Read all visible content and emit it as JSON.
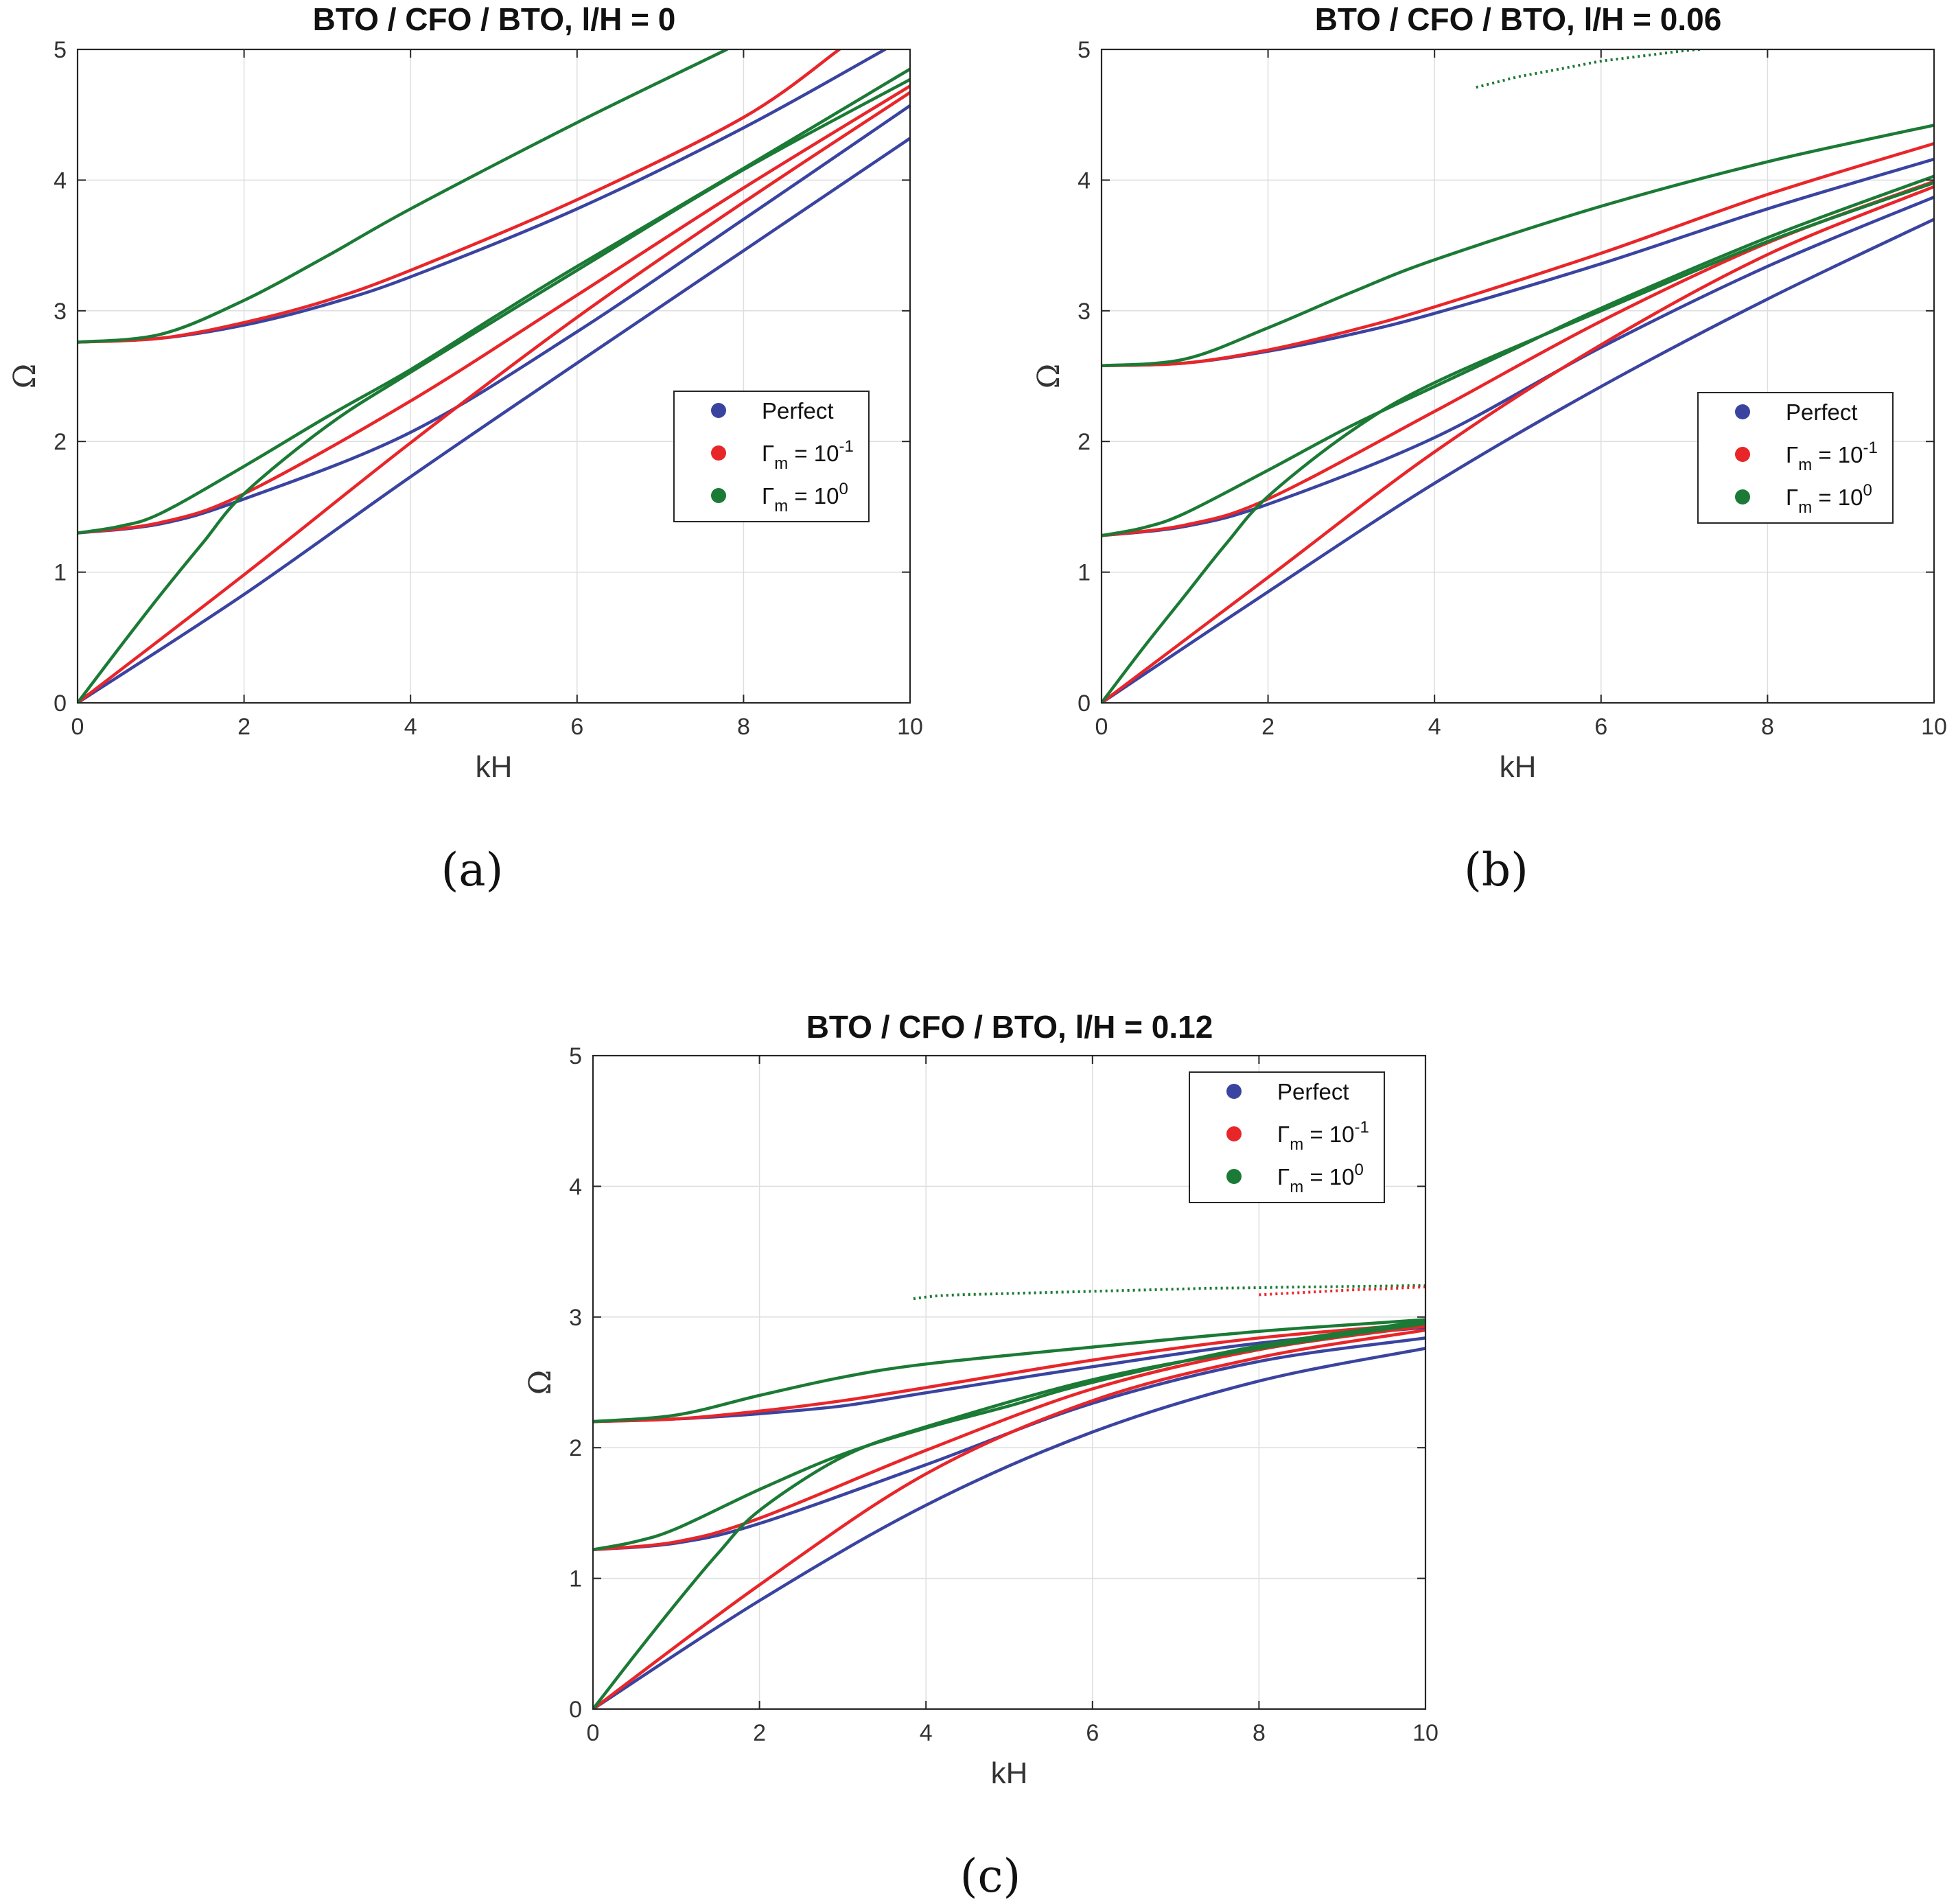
{
  "colors": {
    "perfect": "#3a44a0",
    "gm01": "#e8262a",
    "gm1": "#1b7a35"
  },
  "chart_data": [
    {
      "type": "line",
      "title": "BTO / CFO / BTO, l/H = 0",
      "caption": "(a)",
      "xlabel": "kH",
      "ylabel": "Ω",
      "xlim": [
        0,
        10
      ],
      "ylim": [
        0,
        5
      ],
      "xticks": [
        "0",
        "2",
        "4",
        "6",
        "8",
        "10"
      ],
      "yticks": [
        "0",
        "1",
        "2",
        "3",
        "4",
        "5"
      ],
      "grid": true,
      "legend_position": "right",
      "legend": [
        {
          "key": "perfect",
          "label": "Perfect"
        },
        {
          "key": "gm01",
          "sym": "Γ",
          "sub": "m",
          "eq": " = 10",
          "sup": "-1"
        },
        {
          "key": "gm1",
          "sym": "Γ",
          "sub": "m",
          "eq": " = 10",
          "sup": "0"
        }
      ],
      "series": [
        {
          "name": "Perfect",
          "key": "perfect",
          "branches": [
            {
              "x": [
                0,
                2,
                4,
                6,
                8,
                10
              ],
              "y": [
                0,
                0.83,
                1.73,
                2.6,
                3.46,
                4.32
              ]
            },
            {
              "x": [
                0,
                1,
                2,
                4,
                6,
                8,
                10
              ],
              "y": [
                1.3,
                1.37,
                1.56,
                2.07,
                2.84,
                3.7,
                4.57
              ]
            },
            {
              "x": [
                0,
                1,
                2,
                3,
                4,
                6,
                8,
                9.7
              ],
              "y": [
                2.76,
                2.79,
                2.89,
                3.05,
                3.26,
                3.78,
                4.4,
                5.0
              ]
            }
          ]
        },
        {
          "name": "Γm = 10^-1",
          "key": "gm01",
          "branches": [
            {
              "x": [
                0,
                2,
                4,
                6,
                8,
                10
              ],
              "y": [
                0,
                0.98,
                1.99,
                2.95,
                3.83,
                4.67
              ]
            },
            {
              "x": [
                0,
                1,
                2,
                4,
                6,
                8,
                10
              ],
              "y": [
                1.3,
                1.38,
                1.6,
                2.31,
                3.12,
                3.94,
                4.72
              ]
            },
            {
              "x": [
                0,
                1,
                2,
                3,
                4,
                6,
                8,
                9.15
              ],
              "y": [
                2.76,
                2.79,
                2.91,
                3.08,
                3.31,
                3.85,
                4.48,
                5.0
              ]
            }
          ]
        },
        {
          "name": "Γm = 10^0",
          "key": "gm1",
          "branches": [
            {
              "x": [
                0,
                0.5,
                1,
                1.5,
                2,
                3,
                4,
                6,
                8,
                10
              ],
              "y": [
                0,
                0.42,
                0.83,
                1.22,
                1.6,
                2.12,
                2.53,
                3.31,
                4.08,
                4.77
              ]
            },
            {
              "x": [
                0,
                0.5,
                1,
                2,
                3,
                4,
                5,
                6,
                8,
                10
              ],
              "y": [
                1.3,
                1.35,
                1.45,
                1.81,
                2.19,
                2.55,
                2.95,
                3.34,
                4.09,
                4.85
              ]
            },
            {
              "x": [
                0,
                1,
                2,
                3,
                4,
                6,
                7.8
              ],
              "y": [
                2.76,
                2.82,
                3.08,
                3.42,
                3.78,
                4.44,
                5.0
              ]
            }
          ]
        }
      ],
      "scatter": []
    },
    {
      "type": "line",
      "title": "BTO / CFO / BTO, l/H = 0.06",
      "caption": "(b)",
      "xlabel": "kH",
      "ylabel": "Ω",
      "xlim": [
        0,
        10
      ],
      "ylim": [
        0,
        5
      ],
      "xticks": [
        "0",
        "2",
        "4",
        "6",
        "8",
        "10"
      ],
      "yticks": [
        "0",
        "1",
        "2",
        "3",
        "4",
        "5"
      ],
      "grid": true,
      "legend_position": "right",
      "legend": [
        {
          "key": "perfect",
          "label": "Perfect"
        },
        {
          "key": "gm01",
          "sym": "Γ",
          "sub": "m",
          "eq": " = 10",
          "sup": "-1"
        },
        {
          "key": "gm1",
          "sym": "Γ",
          "sub": "m",
          "eq": " = 10",
          "sup": "0"
        }
      ],
      "series": [
        {
          "name": "Perfect",
          "key": "perfect",
          "branches": [
            {
              "x": [
                0,
                2,
                4,
                6,
                8,
                10
              ],
              "y": [
                0,
                0.85,
                1.68,
                2.42,
                3.09,
                3.7
              ]
            },
            {
              "x": [
                0,
                1,
                2,
                4,
                6,
                8,
                10
              ],
              "y": [
                1.28,
                1.35,
                1.52,
                2.03,
                2.72,
                3.34,
                3.87
              ]
            },
            {
              "x": [
                0,
                1,
                2,
                3,
                4,
                6,
                8,
                10
              ],
              "y": [
                2.58,
                2.6,
                2.69,
                2.82,
                2.98,
                3.36,
                3.78,
                4.16
              ]
            }
          ]
        },
        {
          "name": "Γm = 10^-1",
          "key": "gm01",
          "branches": [
            {
              "x": [
                0,
                2,
                4,
                6,
                8,
                10
              ],
              "y": [
                0,
                0.96,
                1.92,
                2.74,
                3.43,
                3.95
              ]
            },
            {
              "x": [
                0,
                1,
                2,
                4,
                6,
                8,
                10
              ],
              "y": [
                1.28,
                1.36,
                1.56,
                2.23,
                2.92,
                3.52,
                3.99
              ]
            },
            {
              "x": [
                0,
                1,
                2,
                3,
                4,
                6,
                8,
                10
              ],
              "y": [
                2.58,
                2.6,
                2.7,
                2.85,
                3.03,
                3.44,
                3.89,
                4.28
              ]
            }
          ]
        },
        {
          "name": "Γm = 10^0",
          "key": "gm1",
          "branches": [
            {
              "x": [
                0,
                0.5,
                1,
                1.5,
                2,
                3,
                4,
                6,
                8,
                10
              ],
              "y": [
                0,
                0.42,
                0.82,
                1.22,
                1.58,
                2.08,
                2.45,
                3.0,
                3.53,
                3.98
              ]
            },
            {
              "x": [
                0,
                0.5,
                1,
                2,
                3,
                4,
                5,
                6,
                8,
                10
              ],
              "y": [
                1.28,
                1.34,
                1.45,
                1.78,
                2.12,
                2.42,
                2.72,
                3.02,
                3.56,
                4.03
              ]
            },
            {
              "x": [
                0,
                1,
                2,
                3,
                4,
                6,
                8,
                10
              ],
              "y": [
                2.58,
                2.63,
                2.87,
                3.14,
                3.39,
                3.8,
                4.14,
                4.42
              ]
            }
          ]
        }
      ],
      "scatter": [
        {
          "key": "gm1",
          "x": [
            4.5,
            4.75,
            5.0,
            5.25,
            5.5,
            5.75,
            6.0,
            6.25,
            6.5,
            6.75,
            7.0,
            7.2
          ],
          "y": [
            4.71,
            4.75,
            4.79,
            4.82,
            4.85,
            4.88,
            4.91,
            4.93,
            4.95,
            4.97,
            4.99,
            5.0
          ]
        }
      ]
    },
    {
      "type": "line",
      "title": "BTO / CFO / BTO, l/H = 0.12",
      "caption": "(c)",
      "xlabel": "kH",
      "ylabel": "Ω",
      "xlim": [
        0,
        10
      ],
      "ylim": [
        0,
        5
      ],
      "xticks": [
        "0",
        "2",
        "4",
        "6",
        "8",
        "10"
      ],
      "yticks": [
        "0",
        "1",
        "2",
        "3",
        "4",
        "5"
      ],
      "grid": true,
      "legend_position": "top-right",
      "legend": [
        {
          "key": "perfect",
          "label": "Perfect"
        },
        {
          "key": "gm01",
          "sym": "Γ",
          "sub": "m",
          "eq": " = 10",
          "sup": "-1"
        },
        {
          "key": "gm1",
          "sym": "Γ",
          "sub": "m",
          "eq": " = 10",
          "sup": "0"
        }
      ],
      "series": [
        {
          "name": "Perfect",
          "key": "perfect",
          "branches": [
            {
              "x": [
                0,
                2,
                4,
                6,
                8,
                10
              ],
              "y": [
                0,
                0.83,
                1.56,
                2.12,
                2.51,
                2.76
              ]
            },
            {
              "x": [
                0,
                1,
                2,
                4,
                6,
                8,
                10
              ],
              "y": [
                1.22,
                1.27,
                1.42,
                1.87,
                2.34,
                2.66,
                2.84
              ]
            },
            {
              "x": [
                0,
                1,
                2,
                3,
                4,
                6,
                8,
                10
              ],
              "y": [
                2.2,
                2.22,
                2.26,
                2.32,
                2.42,
                2.62,
                2.8,
                2.92
              ]
            }
          ]
        },
        {
          "name": "Γm = 10^-1",
          "key": "gm01",
          "branches": [
            {
              "x": [
                0,
                2,
                4,
                6,
                8,
                10
              ],
              "y": [
                0,
                0.95,
                1.8,
                2.36,
                2.69,
                2.9
              ]
            },
            {
              "x": [
                0,
                1,
                2,
                4,
                6,
                8,
                10
              ],
              "y": [
                1.22,
                1.28,
                1.46,
                1.98,
                2.45,
                2.75,
                2.93
              ]
            },
            {
              "x": [
                0,
                1,
                2,
                3,
                4,
                6,
                8,
                10
              ],
              "y": [
                2.2,
                2.22,
                2.28,
                2.36,
                2.46,
                2.67,
                2.84,
                2.95
              ]
            }
          ]
        },
        {
          "name": "Γm = 10^0",
          "key": "gm1",
          "branches": [
            {
              "x": [
                0,
                0.5,
                1,
                1.5,
                2,
                3,
                4,
                6,
                8,
                10
              ],
              "y": [
                0,
                0.41,
                0.81,
                1.19,
                1.52,
                1.93,
                2.16,
                2.52,
                2.76,
                2.95
              ]
            },
            {
              "x": [
                0,
                0.5,
                1,
                2,
                3,
                4,
                5,
                6,
                8,
                10
              ],
              "y": [
                1.22,
                1.28,
                1.38,
                1.68,
                1.95,
                2.15,
                2.32,
                2.5,
                2.78,
                2.97
              ]
            },
            {
              "x": [
                0,
                1,
                2,
                3,
                4,
                6,
                8,
                10
              ],
              "y": [
                2.2,
                2.25,
                2.4,
                2.54,
                2.64,
                2.77,
                2.89,
                2.98
              ]
            }
          ]
        }
      ],
      "scatter": [
        {
          "key": "gm1",
          "x": [
            3.85,
            4.1,
            4.4,
            4.7,
            5.0,
            5.3,
            5.6,
            5.9,
            6.2,
            6.5,
            6.8,
            7.1,
            7.4,
            7.7,
            8.0,
            8.3,
            8.6,
            8.9,
            9.2,
            9.5,
            9.8,
            10.0
          ],
          "y": [
            3.14,
            3.16,
            3.17,
            3.175,
            3.18,
            3.185,
            3.19,
            3.195,
            3.2,
            3.205,
            3.21,
            3.215,
            3.22,
            3.222,
            3.225,
            3.228,
            3.23,
            3.232,
            3.235,
            3.237,
            3.24,
            3.24
          ]
        },
        {
          "key": "gm01",
          "x": [
            8.0,
            8.3,
            8.6,
            8.9,
            9.2,
            9.5,
            9.8,
            10.0
          ],
          "y": [
            3.17,
            3.18,
            3.19,
            3.2,
            3.21,
            3.215,
            3.225,
            3.23
          ]
        }
      ]
    }
  ]
}
